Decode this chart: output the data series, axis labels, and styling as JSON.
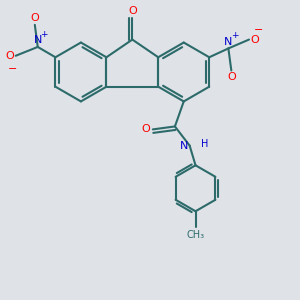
{
  "bg_color": "#dfe3e8",
  "bond_color": "#2d6b6b",
  "atom_colors": {
    "O": "#ff0000",
    "N": "#0000cd",
    "C": "#2d6b6b"
  },
  "figsize": [
    3.0,
    3.0
  ],
  "dpi": 100
}
